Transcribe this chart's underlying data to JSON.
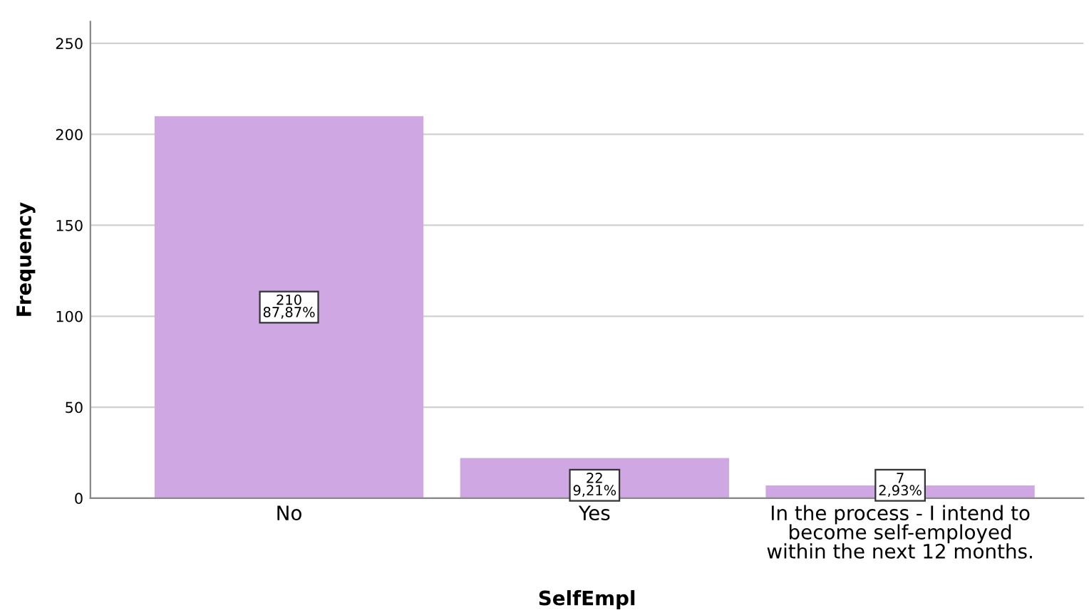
{
  "chart_data": {
    "type": "bar",
    "xlabel": "SelfEmpl",
    "ylabel": "Frequency",
    "categories": [
      "No",
      "Yes",
      "In the process - I intend to\nbecome self-employed\nwithin the next 12 months."
    ],
    "values": [
      210,
      22,
      7
    ],
    "value_labels": [
      "210\n87,87%",
      "22\n9,21%",
      "7\n2,93%"
    ],
    "color": "#cfa8e3",
    "ylim": [
      0,
      262
    ],
    "yticks": [
      0,
      50,
      100,
      150,
      200,
      250
    ],
    "grid": "y"
  }
}
